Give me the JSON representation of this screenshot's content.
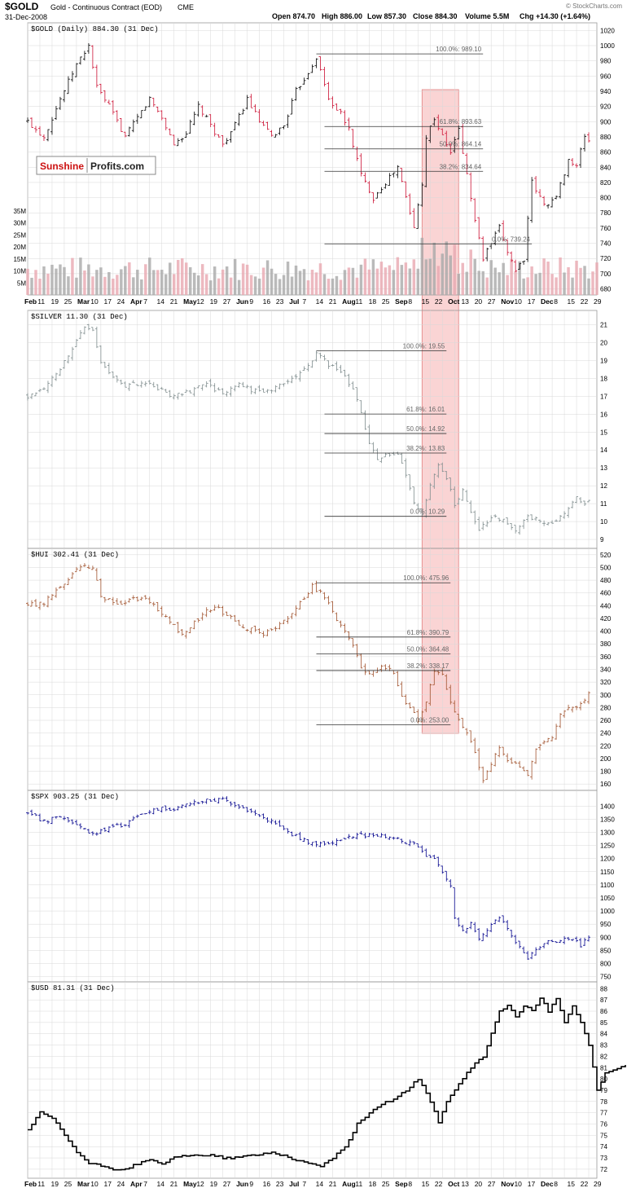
{
  "header": {
    "symbol": "$GOLD",
    "description": "Gold - Continuous Contract (EOD)",
    "exchange": "CME",
    "date": "31-Dec-2008",
    "open": "Open 874.70",
    "high": "High 886.00",
    "low": "Low 857.30",
    "close": "Close 884.30",
    "volume": "Volume 5.5M",
    "chg": "Chg +14.30 (+1.64%)",
    "source": "© StockCharts.com"
  },
  "watermark": {
    "part1": "Sunshine",
    "part2": "Profits.com"
  },
  "colors": {
    "up": "#000000",
    "down": "#cc1133",
    "silver": "#7f8c8d",
    "hui": "#a0522d",
    "spx": "#00008b",
    "usd": "#000000",
    "highlight": "#f5b0b0",
    "grid": "#d8d8d8"
  },
  "xaxis_ticks": [
    "Feb",
    "11",
    "19",
    "25",
    "Mar",
    "10",
    "17",
    "24",
    "Apr",
    "7",
    "14",
    "21",
    "May",
    "12",
    "19",
    "27",
    "Jun",
    "9",
    "16",
    "23",
    "Jul",
    "7",
    "14",
    "21",
    "Aug",
    "11",
    "18",
    "25",
    "Sep",
    "8",
    "15",
    "22",
    "Oct",
    "13",
    "20",
    "27",
    "Nov",
    "10",
    "17",
    "Dec",
    "8",
    "15",
    "22",
    "29"
  ],
  "highlight": {
    "from": "Sep 8",
    "to": "Oct 3"
  },
  "chart_data": [
    {
      "type": "bar",
      "name": "gold",
      "label": "$GOLD (Daily) 884.30 (31 Dec)",
      "ylim": [
        672,
        1030
      ],
      "yticks": [
        680,
        700,
        720,
        740,
        760,
        780,
        800,
        820,
        840,
        860,
        880,
        900,
        920,
        940,
        960,
        980,
        1000,
        1020
      ],
      "volume_ticks": [
        "35M",
        "30M",
        "25M",
        "20M",
        "15M",
        "10M",
        "5M"
      ],
      "points": [
        [
          0,
          900
        ],
        [
          4,
          880
        ],
        [
          8,
          930
        ],
        [
          12,
          975
        ],
        [
          15,
          1000
        ],
        [
          17,
          945
        ],
        [
          20,
          920
        ],
        [
          24,
          880
        ],
        [
          27,
          905
        ],
        [
          30,
          930
        ],
        [
          33,
          905
        ],
        [
          36,
          870
        ],
        [
          39,
          885
        ],
        [
          42,
          920
        ],
        [
          45,
          895
        ],
        [
          48,
          870
        ],
        [
          51,
          895
        ],
        [
          54,
          930
        ],
        [
          57,
          900
        ],
        [
          60,
          880
        ],
        [
          63,
          895
        ],
        [
          66,
          940
        ],
        [
          69,
          965
        ],
        [
          71,
          985
        ],
        [
          74,
          930
        ],
        [
          77,
          910
        ],
        [
          79,
          890
        ],
        [
          82,
          830
        ],
        [
          85,
          800
        ],
        [
          88,
          820
        ],
        [
          91,
          840
        ],
        [
          93,
          800
        ],
        [
          95,
          760
        ],
        [
          97,
          820
        ],
        [
          98,
          880
        ],
        [
          100,
          905
        ],
        [
          102,
          880
        ],
        [
          104,
          860
        ],
        [
          106,
          890
        ],
        [
          108,
          830
        ],
        [
          110,
          770
        ],
        [
          112,
          720
        ],
        [
          114,
          740
        ],
        [
          116,
          760
        ],
        [
          118,
          730
        ],
        [
          120,
          705
        ],
        [
          122,
          720
        ],
        [
          124,
          820
        ],
        [
          127,
          790
        ],
        [
          130,
          800
        ],
        [
          133,
          850
        ],
        [
          135,
          840
        ],
        [
          137,
          882
        ],
        [
          138,
          875
        ]
      ],
      "fib": [
        {
          "label": "100.0%: 989.10",
          "value": 989.1,
          "from": 71,
          "to": 112
        },
        {
          "label": "61.8%: 893.63",
          "value": 893.63,
          "from": 73,
          "to": 112
        },
        {
          "label": "50.0%: 864.14",
          "value": 864.14,
          "from": 73,
          "to": 112
        },
        {
          "label": "38.2%: 834.64",
          "value": 834.64,
          "from": 73,
          "to": 112
        },
        {
          "label": "0.0%: 739.24",
          "value": 739.24,
          "from": 73,
          "to": 124
        }
      ]
    },
    {
      "type": "bar",
      "name": "silver",
      "label": "$SILVER 11.30 (31 Dec)",
      "ylim": [
        8.5,
        21.8
      ],
      "yticks": [
        9,
        10,
        11,
        12,
        13,
        14,
        15,
        16,
        17,
        18,
        19,
        20,
        21
      ],
      "points": [
        [
          0,
          17
        ],
        [
          4,
          17.5
        ],
        [
          8,
          18.5
        ],
        [
          12,
          20.2
        ],
        [
          14,
          20.8
        ],
        [
          16,
          20.6
        ],
        [
          18,
          19
        ],
        [
          21,
          18
        ],
        [
          24,
          17.5
        ],
        [
          28,
          17.8
        ],
        [
          32,
          17.4
        ],
        [
          36,
          17
        ],
        [
          40,
          17.3
        ],
        [
          44,
          17.6
        ],
        [
          48,
          17.2
        ],
        [
          52,
          17.6
        ],
        [
          56,
          17.3
        ],
        [
          60,
          17.4
        ],
        [
          64,
          17.8
        ],
        [
          68,
          18.5
        ],
        [
          71,
          19.4
        ],
        [
          74,
          18.8
        ],
        [
          77,
          18.3
        ],
        [
          80,
          17.5
        ],
        [
          82,
          16
        ],
        [
          84,
          14.5
        ],
        [
          86,
          13.5
        ],
        [
          88,
          13.7
        ],
        [
          91,
          13.8
        ],
        [
          93,
          12.5
        ],
        [
          95,
          11
        ],
        [
          97,
          10.5
        ],
        [
          99,
          12
        ],
        [
          101,
          13.2
        ],
        [
          103,
          12.5
        ],
        [
          105,
          11
        ],
        [
          107,
          11.7
        ],
        [
          109,
          10.5
        ],
        [
          111,
          9.5
        ],
        [
          114,
          10.2
        ],
        [
          117,
          10.2
        ],
        [
          120,
          9.5
        ],
        [
          123,
          10.3
        ],
        [
          126,
          10
        ],
        [
          129,
          9.8
        ],
        [
          132,
          10.5
        ],
        [
          135,
          11.4
        ],
        [
          137,
          10.9
        ],
        [
          138,
          11.3
        ]
      ],
      "fib": [
        {
          "label": "100.0%: 19.55",
          "value": 19.55,
          "from": 71,
          "to": 103
        },
        {
          "label": "61.8%: 16.01",
          "value": 16.01,
          "from": 73,
          "to": 103
        },
        {
          "label": "50.0%: 14.92",
          "value": 14.92,
          "from": 73,
          "to": 103
        },
        {
          "label": "38.2%: 13.83",
          "value": 13.83,
          "from": 73,
          "to": 103
        },
        {
          "label": "0.0%: 10.29",
          "value": 10.29,
          "from": 73,
          "to": 103
        }
      ]
    },
    {
      "type": "bar",
      "name": "hui",
      "label": "$HUI 302.41 (31 Dec)",
      "ylim": [
        150,
        530
      ],
      "yticks": [
        160,
        180,
        200,
        220,
        240,
        260,
        280,
        300,
        320,
        340,
        360,
        380,
        400,
        420,
        440,
        460,
        480,
        500,
        520
      ],
      "points": [
        [
          0,
          440
        ],
        [
          4,
          445
        ],
        [
          8,
          470
        ],
        [
          12,
          495
        ],
        [
          14,
          505
        ],
        [
          16,
          500
        ],
        [
          18,
          455
        ],
        [
          22,
          440
        ],
        [
          26,
          450
        ],
        [
          30,
          448
        ],
        [
          34,
          420
        ],
        [
          38,
          395
        ],
        [
          42,
          420
        ],
        [
          46,
          440
        ],
        [
          50,
          420
        ],
        [
          54,
          405
        ],
        [
          58,
          395
        ],
        [
          62,
          410
        ],
        [
          66,
          435
        ],
        [
          70,
          470
        ],
        [
          73,
          455
        ],
        [
          76,
          420
        ],
        [
          78,
          400
        ],
        [
          80,
          380
        ],
        [
          82,
          340
        ],
        [
          84,
          330
        ],
        [
          87,
          345
        ],
        [
          90,
          335
        ],
        [
          92,
          300
        ],
        [
          94,
          280
        ],
        [
          96,
          260
        ],
        [
          98,
          290
        ],
        [
          100,
          340
        ],
        [
          102,
          330
        ],
        [
          104,
          285
        ],
        [
          106,
          260
        ],
        [
          108,
          240
        ],
        [
          110,
          210
        ],
        [
          112,
          165
        ],
        [
          114,
          190
        ],
        [
          116,
          220
        ],
        [
          118,
          200
        ],
        [
          121,
          190
        ],
        [
          123,
          175
        ],
        [
          125,
          215
        ],
        [
          127,
          230
        ],
        [
          129,
          235
        ],
        [
          131,
          270
        ],
        [
          134,
          280
        ],
        [
          136,
          285
        ],
        [
          138,
          302
        ]
      ],
      "fib": [
        {
          "label": "100.0%: 475.96",
          "value": 475.96,
          "from": 71,
          "to": 104
        },
        {
          "label": "61.8%: 390.79",
          "value": 390.79,
          "from": 71,
          "to": 104
        },
        {
          "label": "50.0%: 364.48",
          "value": 364.48,
          "from": 71,
          "to": 104
        },
        {
          "label": "38.2%: 338.17",
          "value": 338.17,
          "from": 71,
          "to": 104
        },
        {
          "label": "0.0%: 253.00",
          "value": 253.0,
          "from": 71,
          "to": 104
        }
      ]
    },
    {
      "type": "bar",
      "name": "spx",
      "label": "$SPX 903.25 (31 Dec)",
      "ylim": [
        730,
        1460
      ],
      "yticks": [
        750,
        800,
        850,
        900,
        950,
        1000,
        1050,
        1100,
        1150,
        1200,
        1250,
        1300,
        1350,
        1400
      ],
      "points": [
        [
          0,
          1380
        ],
        [
          4,
          1340
        ],
        [
          8,
          1360
        ],
        [
          12,
          1330
        ],
        [
          16,
          1290
        ],
        [
          20,
          1320
        ],
        [
          24,
          1330
        ],
        [
          28,
          1370
        ],
        [
          32,
          1390
        ],
        [
          36,
          1390
        ],
        [
          40,
          1410
        ],
        [
          44,
          1420
        ],
        [
          48,
          1425
        ],
        [
          52,
          1400
        ],
        [
          56,
          1370
        ],
        [
          60,
          1340
        ],
        [
          64,
          1300
        ],
        [
          68,
          1270
        ],
        [
          71,
          1250
        ],
        [
          74,
          1260
        ],
        [
          78,
          1280
        ],
        [
          82,
          1290
        ],
        [
          86,
          1290
        ],
        [
          90,
          1280
        ],
        [
          93,
          1260
        ],
        [
          96,
          1250
        ],
        [
          98,
          1210
        ],
        [
          100,
          1200
        ],
        [
          102,
          1150
        ],
        [
          104,
          1100
        ],
        [
          105,
          980
        ],
        [
          107,
          920
        ],
        [
          109,
          950
        ],
        [
          111,
          900
        ],
        [
          113,
          930
        ],
        [
          116,
          980
        ],
        [
          119,
          900
        ],
        [
          121,
          860
        ],
        [
          123,
          810
        ],
        [
          125,
          860
        ],
        [
          128,
          880
        ],
        [
          131,
          890
        ],
        [
          134,
          890
        ],
        [
          136,
          870
        ],
        [
          138,
          903
        ]
      ]
    },
    {
      "type": "line",
      "name": "usd",
      "label": "$USD 81.31 (31 Dec)",
      "ylim": [
        71.2,
        88.6
      ],
      "yticks": [
        72,
        73,
        74,
        75,
        76,
        77,
        78,
        79,
        80,
        81,
        82,
        83,
        84,
        85,
        86,
        87,
        88
      ],
      "points": [
        [
          0,
          75.5
        ],
        [
          3,
          77
        ],
        [
          6,
          76.5
        ],
        [
          9,
          75
        ],
        [
          12,
          73.5
        ],
        [
          15,
          72.5
        ],
        [
          18,
          72.3
        ],
        [
          21,
          72
        ],
        [
          24,
          72
        ],
        [
          27,
          72.5
        ],
        [
          30,
          72.8
        ],
        [
          33,
          72.5
        ],
        [
          36,
          73
        ],
        [
          39,
          73.2
        ],
        [
          42,
          73.2
        ],
        [
          45,
          73.3
        ],
        [
          48,
          73
        ],
        [
          51,
          73
        ],
        [
          54,
          73.2
        ],
        [
          57,
          73.3
        ],
        [
          60,
          73.5
        ],
        [
          63,
          73.2
        ],
        [
          66,
          72.8
        ],
        [
          69,
          72.5
        ],
        [
          72,
          72.3
        ],
        [
          75,
          73
        ],
        [
          78,
          74
        ],
        [
          81,
          76
        ],
        [
          84,
          77
        ],
        [
          87,
          77.8
        ],
        [
          90,
          78.2
        ],
        [
          93,
          79
        ],
        [
          96,
          80
        ],
        [
          99,
          78
        ],
        [
          101,
          76.2
        ],
        [
          103,
          78
        ],
        [
          105,
          79
        ],
        [
          107,
          80
        ],
        [
          109,
          81
        ],
        [
          112,
          82
        ],
        [
          114,
          84
        ],
        [
          116,
          86
        ],
        [
          118,
          86.5
        ],
        [
          120,
          85.5
        ],
        [
          122,
          86.5
        ],
        [
          124,
          86
        ],
        [
          126,
          87.2
        ],
        [
          128,
          86
        ],
        [
          130,
          87.2
        ],
        [
          132,
          85
        ],
        [
          134,
          86.5
        ],
        [
          136,
          85
        ],
        [
          138,
          83
        ],
        [
          140,
          79
        ],
        [
          142,
          80.5
        ],
        [
          144,
          80.8
        ],
        [
          146,
          81
        ],
        [
          147,
          81.3
        ]
      ]
    }
  ]
}
